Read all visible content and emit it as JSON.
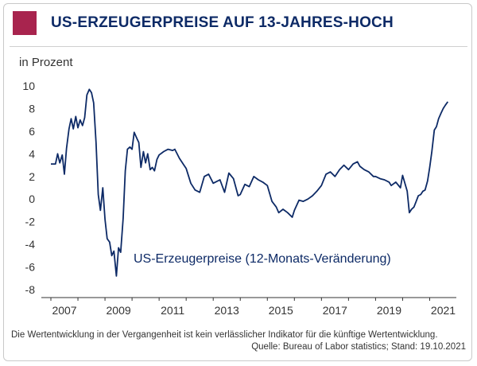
{
  "header": {
    "title": "US-ERZEUGERPREISE AUF 13-JAHRES-HOCH",
    "accent_color": "#a8244e",
    "title_color": "#0d2a66"
  },
  "footer": {
    "disclaimer": "Die Wertentwicklung in der Vergangenheit ist kein verlässlicher Indikator für die künftige Wertentwicklung.",
    "source": "Quelle: Bureau of Labor statistics; Stand: 19.10.2021"
  },
  "chart_data": {
    "type": "line",
    "ylabel": "in Prozent",
    "ylim": [
      -8,
      10
    ],
    "yticks": [
      "10",
      "8",
      "6",
      "4",
      "2",
      "0",
      "-2",
      "-4",
      "-6",
      "-8"
    ],
    "xlim": [
      2007.0,
      2021.75
    ],
    "xticks": [
      "2007",
      "2009",
      "2011",
      "2013",
      "2015",
      "2017",
      "2019",
      "2021"
    ],
    "grid": false,
    "line_color": "#0d2a66",
    "series": [
      {
        "name": "US-Erzeugerpreise (12-Monats-Veränderung)",
        "x": [
          2007.0,
          2007.17,
          2007.25,
          2007.33,
          2007.42,
          2007.5,
          2007.58,
          2007.67,
          2007.75,
          2007.83,
          2007.92,
          2008.0,
          2008.08,
          2008.17,
          2008.25,
          2008.33,
          2008.42,
          2008.5,
          2008.58,
          2008.67,
          2008.75,
          2008.83,
          2008.92,
          2009.0,
          2009.08,
          2009.17,
          2009.25,
          2009.33,
          2009.42,
          2009.5,
          2009.58,
          2009.67,
          2009.75,
          2009.83,
          2009.92,
          2010.0,
          2010.08,
          2010.17,
          2010.25,
          2010.33,
          2010.42,
          2010.5,
          2010.58,
          2010.67,
          2010.75,
          2010.83,
          2010.92,
          2011.0,
          2011.17,
          2011.33,
          2011.5,
          2011.58,
          2011.75,
          2011.92,
          2012.0,
          2012.17,
          2012.33,
          2012.42,
          2012.5,
          2012.67,
          2012.83,
          2013.0,
          2013.08,
          2013.25,
          2013.42,
          2013.58,
          2013.75,
          2013.92,
          2014.0,
          2014.17,
          2014.33,
          2014.5,
          2014.67,
          2014.83,
          2015.0,
          2015.17,
          2015.33,
          2015.42,
          2015.58,
          2015.75,
          2015.92,
          2016.0,
          2016.17,
          2016.33,
          2016.5,
          2016.67,
          2016.83,
          2017.0,
          2017.17,
          2017.33,
          2017.5,
          2017.67,
          2017.83,
          2018.0,
          2018.17,
          2018.33,
          2018.42,
          2018.58,
          2018.75,
          2018.92,
          2019.0,
          2019.17,
          2019.33,
          2019.5,
          2019.58,
          2019.75,
          2019.92,
          2020.0,
          2020.17,
          2020.25,
          2020.33,
          2020.42,
          2020.5,
          2020.58,
          2020.67,
          2020.75,
          2020.83,
          2020.92,
          2021.0,
          2021.08,
          2021.17,
          2021.25,
          2021.33,
          2021.42,
          2021.5,
          2021.58,
          2021.67
        ],
        "y": [
          3.1,
          3.1,
          4.0,
          3.2,
          3.9,
          2.2,
          4.5,
          6.2,
          7.1,
          6.2,
          7.3,
          6.3,
          7.0,
          6.5,
          7.2,
          9.2,
          9.7,
          9.4,
          8.5,
          5.0,
          0.4,
          -1.0,
          1.0,
          -1.8,
          -3.5,
          -3.8,
          -5.0,
          -4.6,
          -6.8,
          -4.3,
          -4.7,
          -1.7,
          2.5,
          4.4,
          4.6,
          4.4,
          5.9,
          5.4,
          5.0,
          2.8,
          4.2,
          3.2,
          4.0,
          2.6,
          2.8,
          2.5,
          3.5,
          3.9,
          4.2,
          4.4,
          4.3,
          4.4,
          3.6,
          3.0,
          2.7,
          1.4,
          0.8,
          0.7,
          0.6,
          2.0,
          2.2,
          1.4,
          1.5,
          1.7,
          0.6,
          2.3,
          1.8,
          0.3,
          0.4,
          1.3,
          1.1,
          2.0,
          1.7,
          1.5,
          1.2,
          -0.2,
          -0.7,
          -1.2,
          -0.9,
          -1.2,
          -1.6,
          -1.0,
          -0.1,
          -0.2,
          0.0,
          0.3,
          0.7,
          1.2,
          2.2,
          2.4,
          2.0,
          2.6,
          3.0,
          2.6,
          3.1,
          3.3,
          2.9,
          2.6,
          2.4,
          2.0,
          2.0,
          1.8,
          1.7,
          1.5,
          1.2,
          1.5,
          1.0,
          2.1,
          0.7,
          -1.2,
          -0.9,
          -0.7,
          -0.2,
          0.3,
          0.4,
          0.7,
          0.8,
          1.6,
          2.8,
          4.2,
          6.1,
          6.4,
          7.1,
          7.6,
          8.0,
          8.3,
          8.6
        ]
      }
    ],
    "annotation": "US-Erzeugerpreise (12-Monats-Veränderung)"
  }
}
